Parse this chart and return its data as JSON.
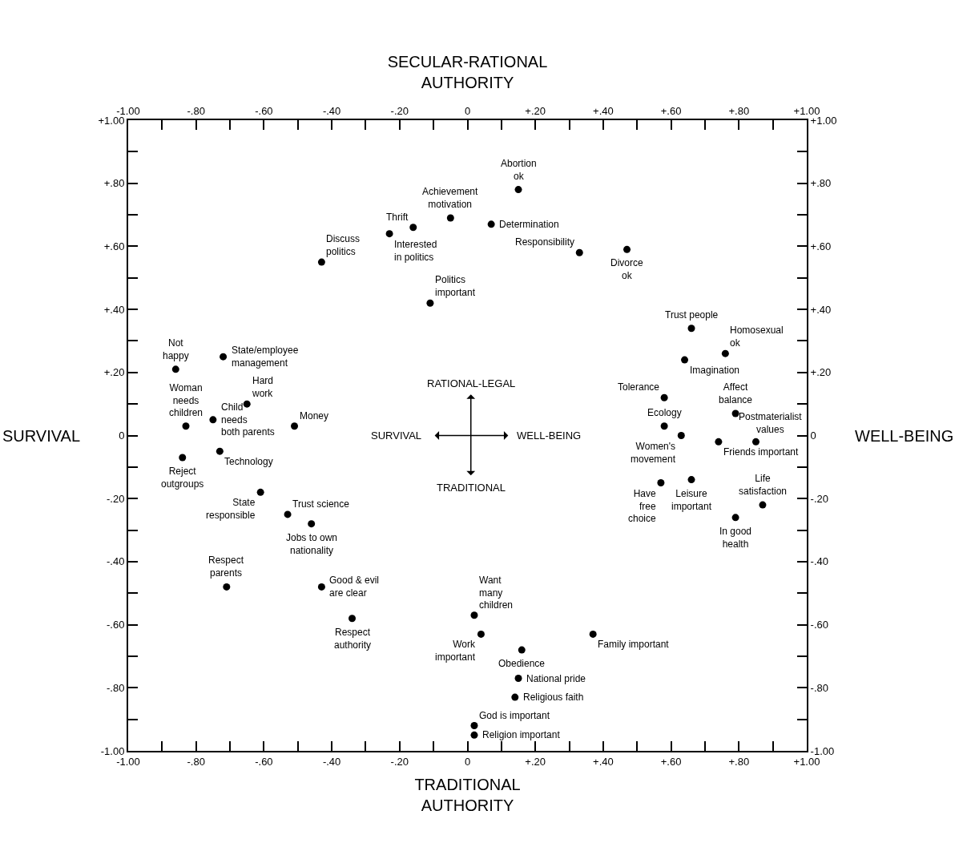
{
  "chart_data": {
    "type": "scatter",
    "xlabel": "TRADITIONAL\nAUTHORITY",
    "x2label": "SECULAR-RATIONAL\nAUTHORITY",
    "ylabel": "SURVIVAL",
    "y2label": "WELL-BEING",
    "x": [
      0.15,
      -0.05,
      -0.16,
      -0.23,
      0.07,
      -0.43,
      0.33,
      0.47,
      -0.11,
      0.66,
      0.76,
      0.64,
      0.58,
      0.79,
      0.58,
      0.63,
      0.74,
      0.85,
      0.57,
      0.66,
      0.87,
      0.79,
      -0.86,
      -0.72,
      -0.65,
      -0.83,
      -0.75,
      -0.51,
      -0.73,
      -0.84,
      -0.61,
      -0.53,
      -0.46,
      -0.71,
      -0.43,
      -0.34,
      0.02,
      0.04,
      0.37,
      0.16,
      0.15,
      0.14,
      0.02,
      0.02
    ],
    "values": [
      0.78,
      0.69,
      0.66,
      0.64,
      0.67,
      0.55,
      0.58,
      0.59,
      0.42,
      0.34,
      0.26,
      0.24,
      0.12,
      0.07,
      0.03,
      0.0,
      -0.02,
      -0.02,
      -0.15,
      -0.14,
      -0.22,
      -0.26,
      0.21,
      0.25,
      0.1,
      0.03,
      0.05,
      0.03,
      -0.05,
      -0.07,
      -0.18,
      -0.25,
      -0.28,
      -0.48,
      -0.48,
      -0.58,
      -0.57,
      -0.63,
      -0.63,
      -0.68,
      -0.77,
      -0.83,
      -0.92,
      -0.95
    ],
    "value_labels": [
      "Abortion\nok",
      "Achievement\nmotivation",
      "Thrift",
      "Interested\nin politics",
      "Determination",
      "Discuss\npolitics",
      "Responsibility",
      "Divorce\nok",
      "Politics\nimportant",
      "Trust people",
      "Homosexual\nok",
      "Imagination",
      "Tolerance",
      "Affect\nbalance",
      "Ecology",
      "Women's\nmovement",
      "Friends important",
      "Postmaterialist\nvalues",
      "Have\nfree\nchoice",
      "Leisure\nimportant",
      "Life\nsatisfaction",
      "In good\nhealth",
      "Not\nhappy",
      "State/employee\nmanagement",
      "Hard\nwork",
      "Woman\nneeds\nchildren",
      "Child\nneeds\nboth parents",
      "Money",
      "Technology",
      "Reject\noutgroups",
      "State\nresponsible",
      "Trust science",
      "Jobs to own\nnationality",
      "Respect\nparents",
      "Good & evil\nare clear",
      "Respect\nauthority",
      "Want\nmany\nchildren",
      "Work\nimportant",
      "Family important",
      "Obedience",
      "National pride",
      "Religious faith",
      "God is important",
      "Religion important"
    ],
    "color": "#000000",
    "marker": "circle",
    "xlim": [
      -1,
      1
    ],
    "ylim": [
      -1,
      1
    ],
    "x2lim": [
      -1,
      1
    ],
    "y2lim": [
      -1,
      1
    ],
    "xticks": [
      {
        "value": -1,
        "label": "-1.00"
      },
      {
        "value": -0.9,
        "label": null
      },
      {
        "value": -0.8,
        "label": "-.80"
      },
      {
        "value": -0.7,
        "label": null
      },
      {
        "value": -0.6,
        "label": "-.60"
      },
      {
        "value": -0.5,
        "label": null
      },
      {
        "value": -0.4,
        "label": "-.40"
      },
      {
        "value": -0.3,
        "label": null
      },
      {
        "value": -0.2,
        "label": "-.20"
      },
      {
        "value": -0.1,
        "label": null
      },
      0,
      {
        "value": 0.1,
        "label": null
      },
      {
        "value": 0.2,
        "label": "+.20"
      },
      {
        "value": 0.3,
        "label": null
      },
      {
        "value": 0.4,
        "label": "+.40"
      },
      {
        "value": 0.5,
        "label": null
      },
      {
        "value": 0.6,
        "label": "+.60"
      },
      {
        "value": 0.7,
        "label": null
      },
      {
        "value": 0.8,
        "label": "+.80"
      },
      {
        "value": 0.9,
        "label": null
      },
      {
        "value": 1,
        "label": "+1.00"
      }
    ],
    "x2ticks": [
      {
        "value": -1,
        "label": "-1.00"
      },
      {
        "value": -0.9,
        "label": null
      },
      {
        "value": -0.8,
        "label": "-.80"
      },
      {
        "value": -0.7,
        "label": null
      },
      {
        "value": -0.6,
        "label": "-.60"
      },
      {
        "value": -0.5,
        "label": null
      },
      {
        "value": -0.4,
        "label": "-.40"
      },
      {
        "value": -0.3,
        "label": null
      },
      {
        "value": -0.2,
        "label": "-.20"
      },
      {
        "value": -0.1,
        "label": null
      },
      0,
      {
        "value": 0.1,
        "label": null
      },
      {
        "value": 0.2,
        "label": "+.20"
      },
      {
        "value": 0.3,
        "label": null
      },
      {
        "value": 0.4,
        "label": "+.40"
      },
      {
        "value": 0.5,
        "label": null
      },
      {
        "value": 0.6,
        "label": "+.60"
      },
      {
        "value": 0.7,
        "label": null
      },
      {
        "value": 0.8,
        "label": "+.80"
      },
      {
        "value": 0.9,
        "label": null
      },
      {
        "value": 1,
        "label": "+1.00"
      }
    ],
    "yticks": [
      {
        "value": -1,
        "label": "-1.00"
      },
      {
        "value": -0.9,
        "label": null
      },
      {
        "value": -0.8,
        "label": "-.80"
      },
      {
        "value": -0.7,
        "label": null
      },
      {
        "value": -0.6,
        "label": "-.60"
      },
      {
        "value": -0.5,
        "label": null
      },
      {
        "value": -0.4,
        "label": "-.40"
      },
      {
        "value": -0.3,
        "label": null
      },
      {
        "value": -0.2,
        "label": "-.20"
      },
      {
        "value": -0.1,
        "label": null
      },
      0,
      {
        "value": 0.1,
        "label": null
      },
      {
        "value": 0.2,
        "label": "+.20"
      },
      {
        "value": 0.3,
        "label": null
      },
      {
        "value": 0.4,
        "label": "+.40"
      },
      {
        "value": 0.5,
        "label": null
      },
      {
        "value": 0.6,
        "label": "+.60"
      },
      {
        "value": 0.7,
        "label": null
      },
      {
        "value": 0.8,
        "label": "+.80"
      },
      {
        "value": 0.9,
        "label": null
      },
      {
        "value": 1,
        "label": "+1.00"
      }
    ],
    "y2ticks": [
      {
        "value": -1,
        "label": "-1.00"
      },
      {
        "value": -0.9,
        "label": null
      },
      {
        "value": -0.8,
        "label": "-.80"
      },
      {
        "value": -0.7,
        "label": null
      },
      {
        "value": -0.6,
        "label": "-.60"
      },
      {
        "value": -0.5,
        "label": null
      },
      {
        "value": -0.4,
        "label": "-.40"
      },
      {
        "value": -0.3,
        "label": null
      },
      {
        "value": -0.2,
        "label": "-.20"
      },
      {
        "value": -0.1,
        "label": null
      },
      0,
      {
        "value": 0.1,
        "label": null
      },
      {
        "value": 0.2,
        "label": "+.20"
      },
      {
        "value": 0.3,
        "label": null
      },
      {
        "value": 0.4,
        "label": "+.40"
      },
      {
        "value": 0.5,
        "label": null
      },
      {
        "value": 0.6,
        "label": "+.60"
      },
      {
        "value": 0.7,
        "label": null
      },
      {
        "value": 0.8,
        "label": "+.80"
      },
      {
        "value": 0.9,
        "label": null
      },
      {
        "value": 1,
        "label": "+1.00"
      }
    ],
    "annotations": [
      "RATIONAL-LEGAL",
      "SURVIVAL",
      "WELL-BEING",
      "TRADITIONAL"
    ]
  }
}
